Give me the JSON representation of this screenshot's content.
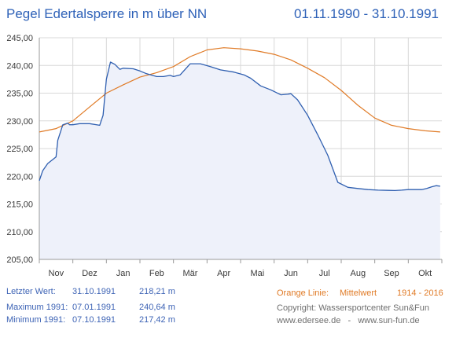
{
  "header": {
    "title": "Pegel Edertalsperre in m über NN",
    "date_range": "01.11.1990 - 31.10.1991"
  },
  "footer": {
    "last_value_label": "Letzter Wert:",
    "last_value_date": "31.10.1991",
    "last_value": "218,21 m",
    "max_label": "Maximum 1991:",
    "max_date": "07.01.1991",
    "max_value": "240,64 m",
    "min_label": "Minimum  1991:",
    "min_date": "07.10.1991",
    "min_value": "217,42 m",
    "orange_label": "Orange Linie:",
    "orange_desc": "Mittelwert",
    "orange_years": "1914 - 2016",
    "copyright": "Copyright: Wassersportcenter Sun&Fun",
    "websites": "www.edersee.de   -   www.sun-fun.de"
  },
  "chart_data": {
    "type": "line",
    "ylim": [
      205,
      245
    ],
    "yticks": [
      "205,00",
      "210,00",
      "215,00",
      "220,00",
      "225,00",
      "230,00",
      "235,00",
      "240,00",
      "245,00"
    ],
    "ytick_values": [
      205,
      210,
      215,
      220,
      225,
      230,
      235,
      240,
      245
    ],
    "x_months": [
      "Nov",
      "Dez",
      "Jan",
      "Feb",
      "Mär",
      "Apr",
      "Mai",
      "Jun",
      "Jul",
      "Aug",
      "Sep",
      "Okt"
    ],
    "grid": true,
    "colors": {
      "series_1991": "#2f5fb0",
      "mittelwert": "#e07b27",
      "fill": "#eef1fa",
      "grid": "#d8d8d8"
    },
    "series": [
      {
        "name": "1991",
        "x": [
          0,
          0.1,
          0.25,
          0.5,
          0.55,
          0.7,
          0.85,
          0.9,
          1.0,
          1.2,
          1.5,
          1.8,
          1.9,
          2.0,
          2.12,
          2.25,
          2.4,
          2.5,
          2.8,
          3.0,
          3.2,
          3.5,
          3.7,
          3.9,
          4.0,
          4.2,
          4.5,
          4.8,
          5.1,
          5.4,
          5.8,
          6.1,
          6.3,
          6.6,
          6.9,
          7.2,
          7.4,
          7.5,
          7.7,
          8.0,
          8.3,
          8.6,
          8.9,
          9.2,
          9.5,
          9.8,
          10.1,
          10.4,
          10.6,
          10.8,
          11.0,
          11.2,
          11.4,
          11.55,
          11.7,
          11.83,
          11.95
        ],
        "values": [
          219.2,
          221.0,
          222.3,
          223.5,
          226.5,
          229.3,
          229.6,
          229.3,
          229.3,
          229.5,
          229.5,
          229.2,
          231.0,
          237.5,
          240.6,
          240.2,
          239.3,
          239.5,
          239.4,
          239.0,
          238.5,
          238.0,
          238.0,
          238.2,
          238.0,
          238.3,
          240.3,
          240.3,
          239.8,
          239.2,
          238.8,
          238.3,
          237.7,
          236.3,
          235.6,
          234.7,
          234.8,
          234.9,
          233.8,
          231.0,
          227.5,
          223.8,
          218.9,
          218.0,
          217.8,
          217.6,
          217.5,
          217.45,
          217.42,
          217.5,
          217.6,
          217.6,
          217.6,
          217.8,
          218.1,
          218.3,
          218.21
        ]
      },
      {
        "name": "Mittelwert",
        "x": [
          0,
          0.5,
          1.0,
          1.5,
          2.0,
          2.5,
          3.0,
          3.5,
          4.0,
          4.5,
          5.0,
          5.5,
          6.0,
          6.5,
          7.0,
          7.5,
          8.0,
          8.5,
          9.0,
          9.5,
          10.0,
          10.5,
          11.0,
          11.5,
          11.95
        ],
        "values": [
          228.0,
          228.6,
          230.0,
          232.5,
          235.0,
          236.5,
          237.9,
          238.7,
          239.8,
          241.6,
          242.8,
          243.2,
          243.0,
          242.6,
          242.0,
          241.0,
          239.5,
          237.8,
          235.5,
          232.8,
          230.5,
          229.2,
          228.6,
          228.2,
          228.0
        ]
      }
    ]
  }
}
